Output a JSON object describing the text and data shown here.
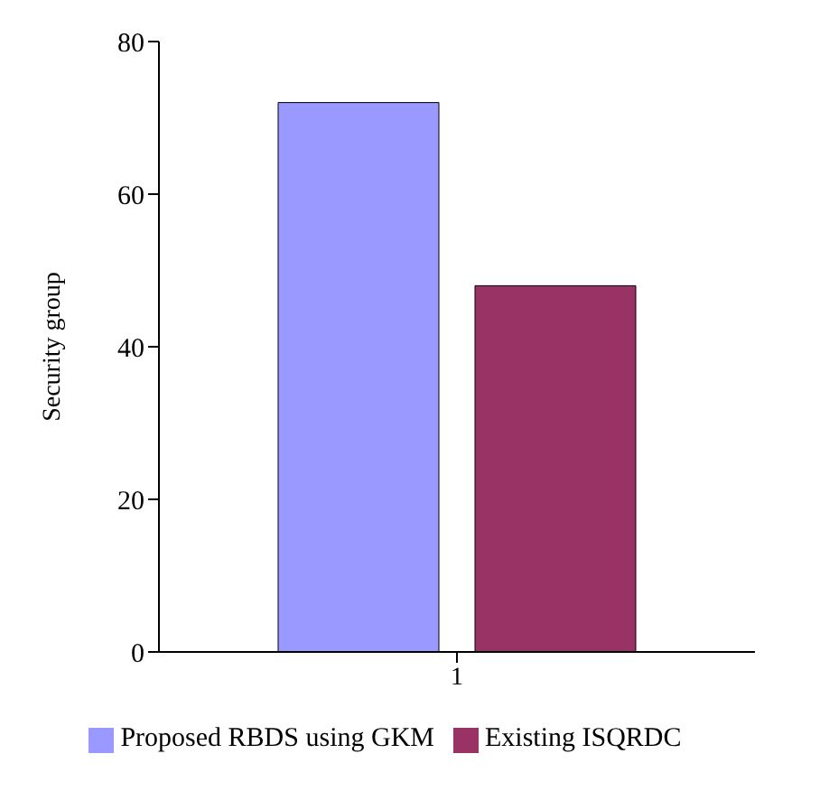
{
  "chart_data": {
    "type": "bar",
    "ylabel": "Security group",
    "categories": [
      "1"
    ],
    "series": [
      {
        "name": "Proposed RBDS using GKM",
        "color": "#9999ff",
        "values": [
          72
        ]
      },
      {
        "name": "Existing ISQRDC",
        "color": "#993366",
        "values": [
          48
        ]
      }
    ],
    "ylim": [
      0,
      80
    ],
    "yticks": [
      0,
      20,
      40,
      60,
      80
    ],
    "grid": false,
    "legend": "bottom"
  }
}
